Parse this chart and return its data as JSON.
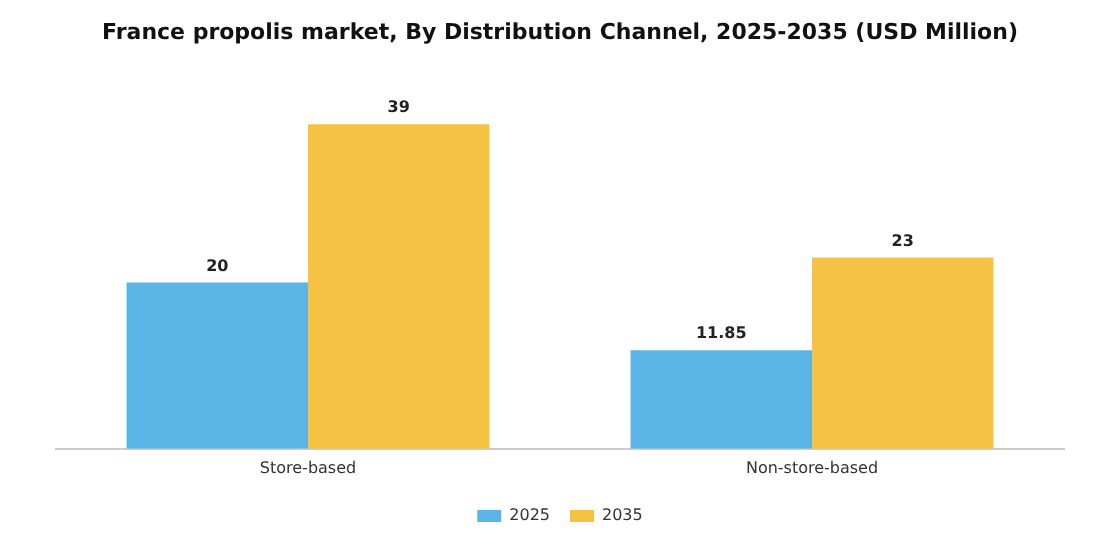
{
  "chart_data": {
    "type": "bar",
    "title": "France propolis market, By Distribution Channel, 2025-2035 (USD Million)",
    "categories": [
      "Store-based",
      "Non-store-based"
    ],
    "series": [
      {
        "name": "2025",
        "color": "#5ab4e5",
        "values": [
          20,
          11.85
        ]
      },
      {
        "name": "2035",
        "color": "#f6c244",
        "values": [
          39,
          23
        ]
      }
    ],
    "data_labels": true,
    "legend": "bottom",
    "grid": false
  }
}
